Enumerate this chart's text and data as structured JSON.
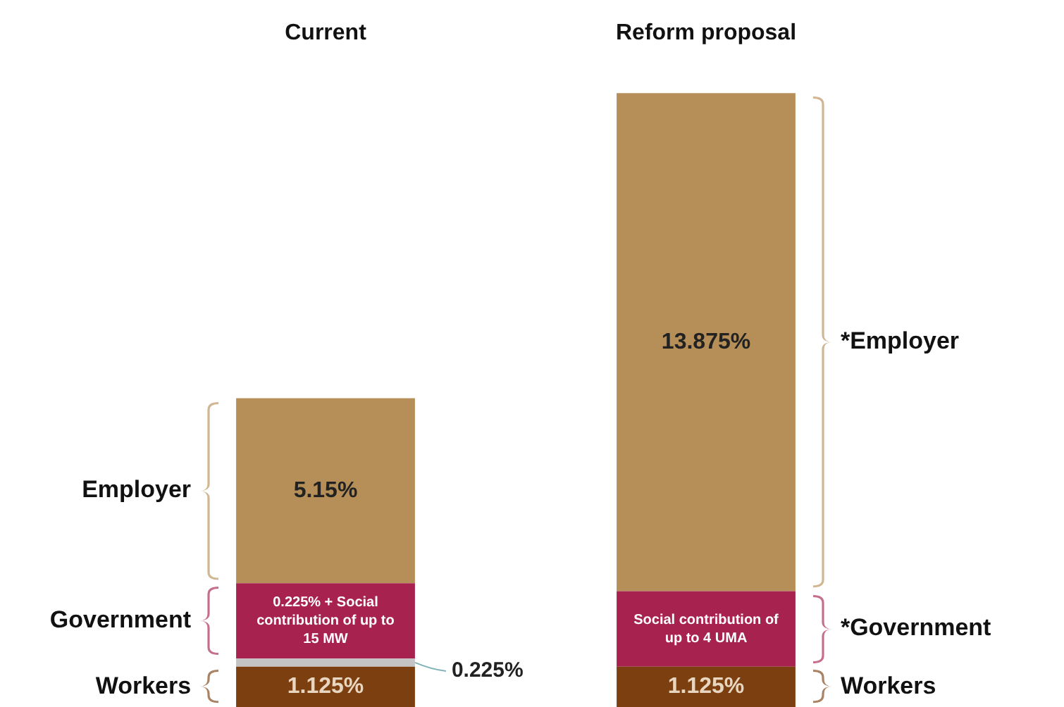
{
  "chart_data": {
    "type": "bar",
    "stacked": true,
    "categories": [
      "Current",
      "Reform proposal"
    ],
    "series": [
      {
        "color": "#7b3f10",
        "values": [
          1.125,
          1.125
        ],
        "value_labels": [
          "1.125%",
          "1.125%"
        ]
      },
      {
        "color": "#c4c4c4",
        "values": [
          0.225,
          null
        ],
        "value_labels": [
          "0.225%",
          null
        ]
      },
      {
        "color": "#a8224f",
        "values": [
          2.1,
          2.1
        ],
        "value_labels": [
          null,
          null
        ]
      },
      {
        "color": "#b68f58",
        "values": [
          5.15,
          13.875
        ],
        "value_labels": [
          "5.15%",
          "13.875%"
        ]
      }
    ],
    "annotations": [
      "Employer",
      "Government",
      "Workers",
      "0.225% + Social contribution of up to 15 MW",
      "*Employer",
      "*Government",
      "Workers",
      "Social contribution of up to 4 UMA"
    ],
    "tick_labels": "x",
    "grid": false,
    "legend": false
  }
}
